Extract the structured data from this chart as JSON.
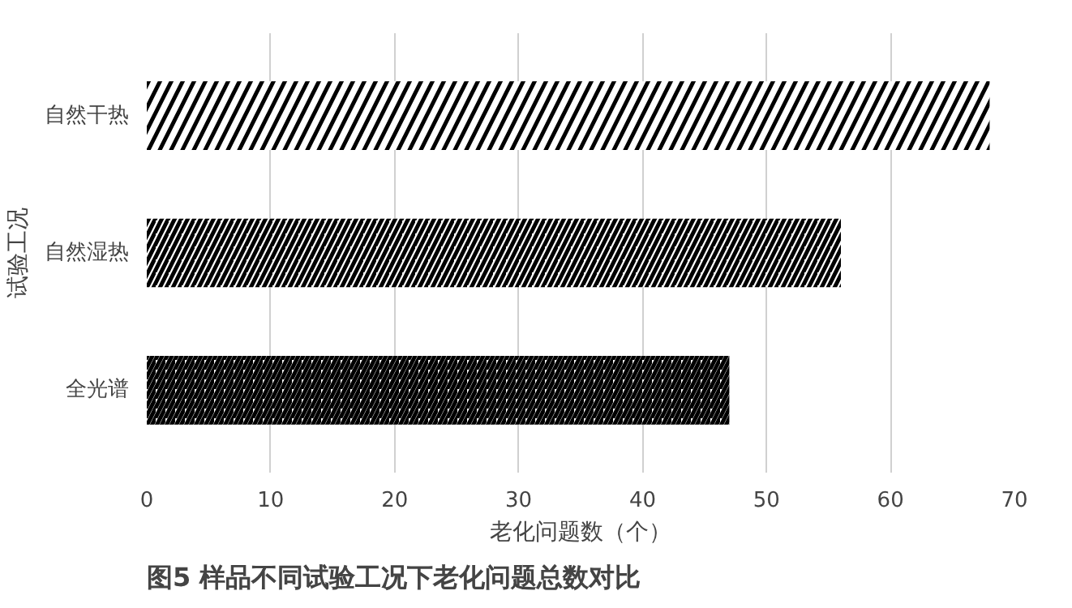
{
  "chart_data": {
    "type": "bar",
    "orientation": "horizontal",
    "title": "图5 样品不同试验工况下老化问题总数对比",
    "xlabel": "老化问题数（个）",
    "ylabel": "试验工况",
    "categories": [
      "自然干热",
      "自然湿热",
      "全光谱"
    ],
    "values": [
      68,
      56,
      47
    ],
    "color": "#000000",
    "xlim": [
      0,
      70
    ],
    "xticks": [
      0,
      10,
      20,
      30,
      40,
      50,
      60,
      70
    ],
    "grid": "x"
  }
}
